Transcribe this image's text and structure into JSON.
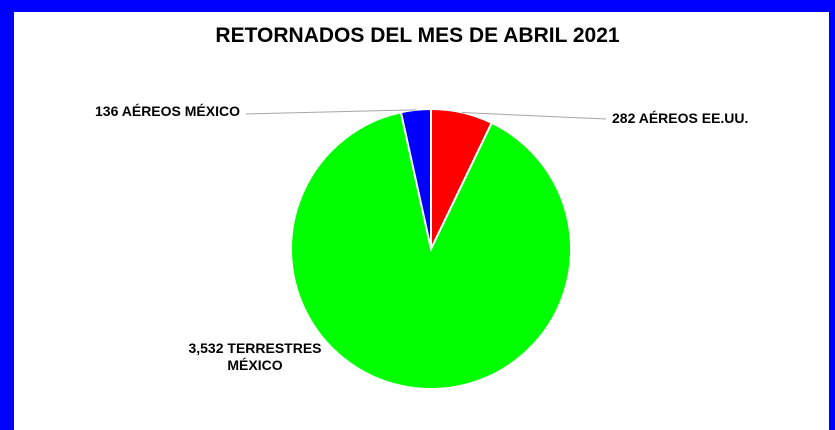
{
  "chart_data": {
    "type": "pie",
    "title": "RETORNADOS DEL MES DE ABRIL 2021",
    "slices": [
      {
        "name": "AÉREOS EE.UU.",
        "value": 282,
        "color": "#ff0000",
        "label_lines": [
          "282 AÉREOS EE.UU."
        ]
      },
      {
        "name": "TERRESTRES MÉXICO",
        "value": 3532,
        "color": "#00ff00",
        "label_lines": [
          "3,532 TERRESTRES",
          "MÉXICO"
        ]
      },
      {
        "name": "AÉREOS MÉXICO",
        "value": 136,
        "color": "#0000ff",
        "label_lines": [
          "136 AÉREOS MÉXICO"
        ]
      }
    ]
  }
}
